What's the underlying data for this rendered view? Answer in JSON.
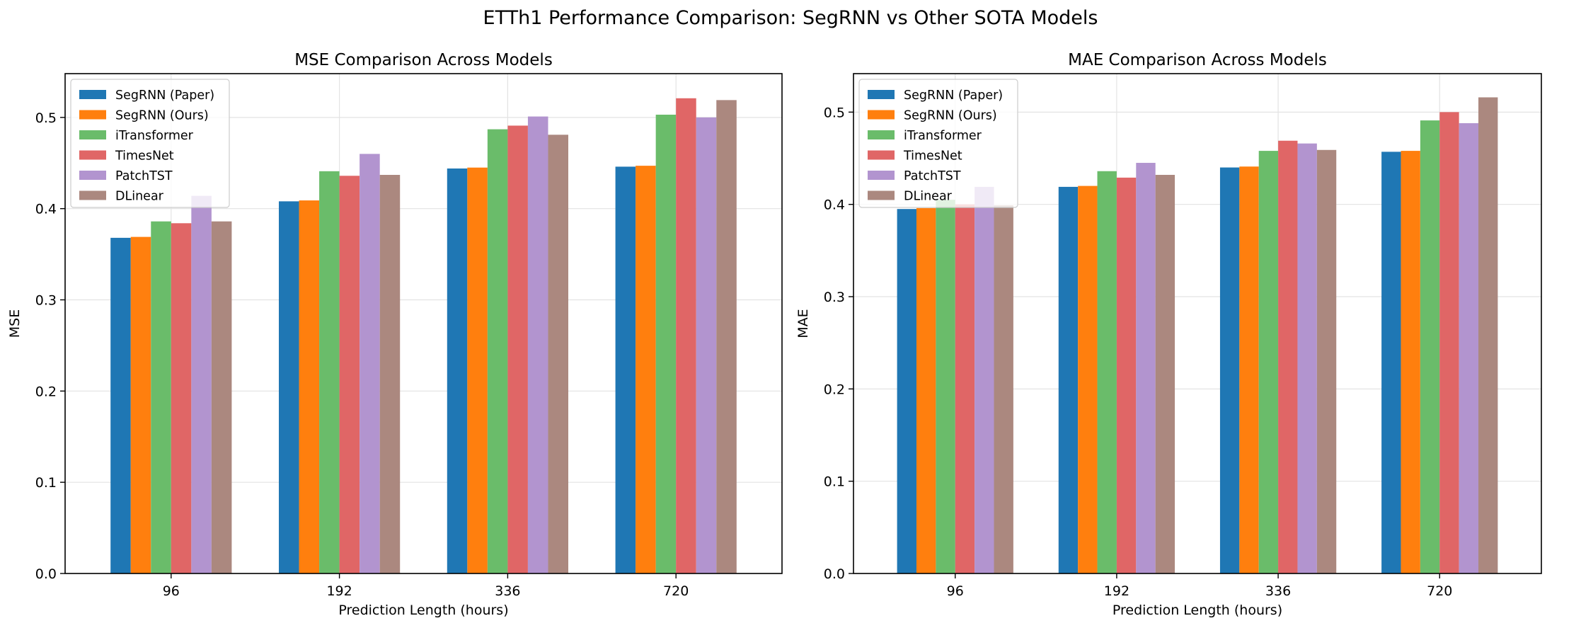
{
  "suptitle": "ETTh1 Performance Comparison: SegRNN vs Other SOTA Models",
  "colors": {
    "SegRNN (Paper)": "#1f77b4",
    "SegRNN (Ours)": "#ff7f0e",
    "iTransformer": "#6abc6a",
    "TimesNet": "#e06666",
    "PatchTST": "#b294cf",
    "DLinear": "#ab887f"
  },
  "chart_data": [
    {
      "type": "bar",
      "title": "MSE Comparison Across Models",
      "xlabel": "Prediction Length (hours)",
      "ylabel": "MSE",
      "categories": [
        "96",
        "192",
        "336",
        "720"
      ],
      "ylim": [
        0,
        0.548
      ],
      "yticks": [
        "0.0",
        "0.1",
        "0.2",
        "0.3",
        "0.4",
        "0.5"
      ],
      "grid": true,
      "legend_position": "upper-left",
      "series": [
        {
          "name": "SegRNN (Paper)",
          "values": [
            0.368,
            0.408,
            0.444,
            0.446
          ]
        },
        {
          "name": "SegRNN (Ours)",
          "values": [
            0.369,
            0.409,
            0.445,
            0.447
          ]
        },
        {
          "name": "iTransformer",
          "values": [
            0.386,
            0.441,
            0.487,
            0.503
          ]
        },
        {
          "name": "TimesNet",
          "values": [
            0.384,
            0.436,
            0.491,
            0.521
          ]
        },
        {
          "name": "PatchTST",
          "values": [
            0.414,
            0.46,
            0.501,
            0.5
          ]
        },
        {
          "name": "DLinear",
          "values": [
            0.386,
            0.437,
            0.481,
            0.519
          ]
        }
      ]
    },
    {
      "type": "bar",
      "title": "MAE Comparison Across Models",
      "xlabel": "Prediction Length (hours)",
      "ylabel": "MAE",
      "categories": [
        "96",
        "192",
        "336",
        "720"
      ],
      "ylim": [
        0,
        0.5417
      ],
      "yticks": [
        "0.0",
        "0.1",
        "0.2",
        "0.3",
        "0.4",
        "0.5"
      ],
      "grid": true,
      "legend_position": "upper-left",
      "series": [
        {
          "name": "SegRNN (Paper)",
          "values": [
            0.395,
            0.419,
            0.44,
            0.457
          ]
        },
        {
          "name": "SegRNN (Ours)",
          "values": [
            0.396,
            0.42,
            0.441,
            0.458
          ]
        },
        {
          "name": "iTransformer",
          "values": [
            0.405,
            0.436,
            0.458,
            0.491
          ]
        },
        {
          "name": "TimesNet",
          "values": [
            0.4,
            0.429,
            0.469,
            0.5
          ]
        },
        {
          "name": "PatchTST",
          "values": [
            0.419,
            0.445,
            0.466,
            0.488
          ]
        },
        {
          "name": "DLinear",
          "values": [
            0.399,
            0.432,
            0.459,
            0.516
          ]
        }
      ]
    }
  ]
}
